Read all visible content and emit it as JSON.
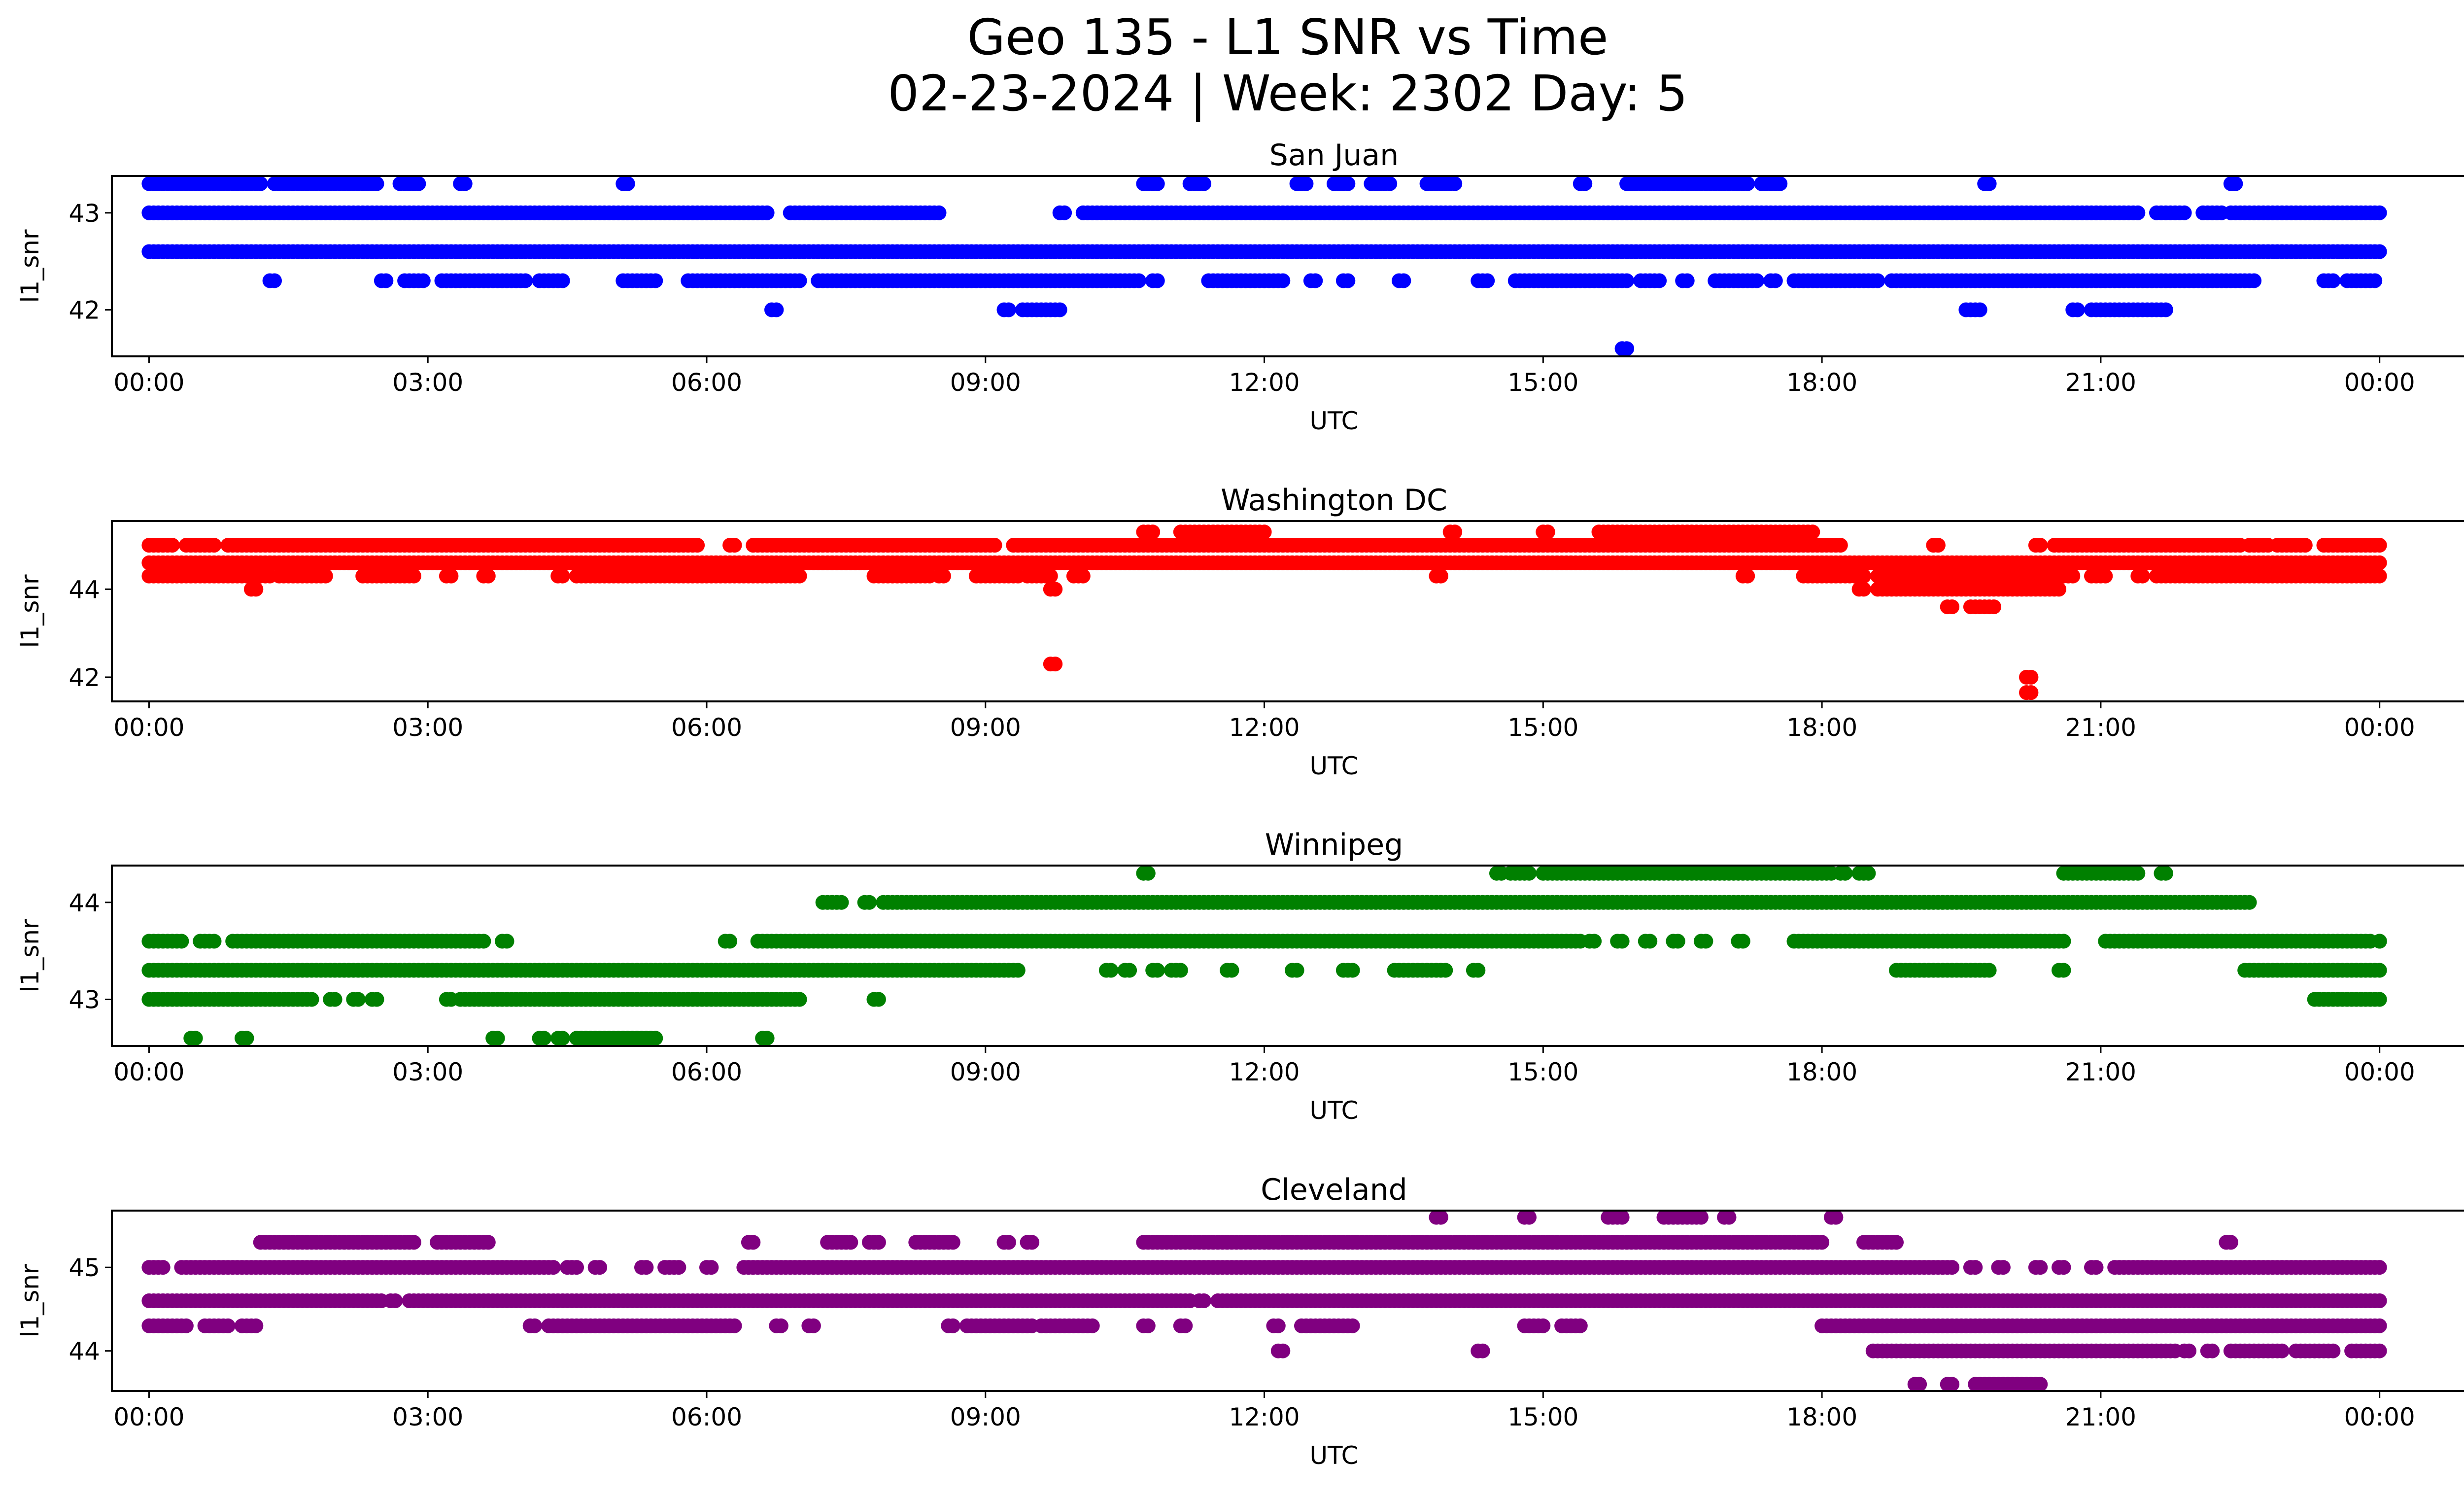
{
  "figure": {
    "title_line1": "Geo 135 - L1 SNR vs Time",
    "title_line2": "02-23-2024 | Week: 2302 Day: 5"
  },
  "chart_data": [
    {
      "type": "scatter",
      "title": "San Juan",
      "xlabel": "UTC",
      "ylabel": "l1_snr",
      "color": "#0000ff",
      "xticks": [
        "00:00",
        "03:00",
        "06:00",
        "09:00",
        "12:00",
        "15:00",
        "18:00",
        "21:00",
        "00:00"
      ],
      "yticks": [
        42,
        43
      ],
      "xlim_hours": [
        -0.4,
        25.9
      ],
      "ylim": [
        41.52,
        43.38
      ],
      "series": [
        {
          "y": 43.3,
          "segments": [
            [
              0.0,
              1.2
            ],
            [
              1.35,
              2.45
            ],
            [
              2.7,
              2.9
            ],
            [
              3.35,
              3.4
            ],
            [
              5.1,
              5.15
            ],
            [
              10.7,
              10.85
            ],
            [
              11.2,
              11.35
            ],
            [
              12.35,
              12.45
            ],
            [
              12.75,
              12.9
            ],
            [
              13.15,
              13.35
            ],
            [
              13.75,
              14.05
            ],
            [
              15.4,
              15.45
            ],
            [
              15.9,
              17.2
            ],
            [
              17.35,
              17.55
            ],
            [
              19.75,
              19.8
            ],
            [
              22.4,
              22.45
            ]
          ]
        },
        {
          "y": 43.0,
          "segments": [
            [
              0.0,
              6.65
            ],
            [
              6.9,
              8.5
            ],
            [
              9.8,
              9.85
            ],
            [
              10.05,
              21.4
            ],
            [
              21.6,
              21.9
            ],
            [
              22.1,
              22.3
            ],
            [
              22.4,
              24.0
            ]
          ]
        },
        {
          "y": 42.6,
          "segments": [
            [
              0.0,
              24.0
            ]
          ]
        },
        {
          "y": 42.3,
          "segments": [
            [
              1.3,
              1.35
            ],
            [
              2.5,
              2.55
            ],
            [
              2.75,
              2.95
            ],
            [
              3.15,
              4.05
            ],
            [
              4.2,
              4.45
            ],
            [
              5.1,
              5.45
            ],
            [
              5.8,
              7.0
            ],
            [
              7.2,
              10.65
            ],
            [
              10.8,
              10.85
            ],
            [
              11.4,
              12.2
            ],
            [
              12.5,
              12.55
            ],
            [
              12.85,
              12.9
            ],
            [
              13.45,
              13.5
            ],
            [
              14.3,
              14.4
            ],
            [
              14.7,
              15.9
            ],
            [
              16.05,
              16.25
            ],
            [
              16.5,
              16.55
            ],
            [
              16.85,
              17.3
            ],
            [
              17.45,
              17.5
            ],
            [
              17.7,
              18.6
            ],
            [
              18.75,
              22.4
            ],
            [
              22.45,
              22.65
            ],
            [
              23.4,
              23.5
            ],
            [
              23.65,
              23.95
            ]
          ]
        },
        {
          "y": 42.0,
          "segments": [
            [
              6.7,
              6.75
            ],
            [
              9.2,
              9.25
            ],
            [
              9.4,
              9.8
            ],
            [
              19.55,
              19.7
            ],
            [
              20.7,
              20.75
            ],
            [
              20.9,
              21.7
            ]
          ]
        },
        {
          "y": 41.6,
          "segments": [
            [
              15.85,
              15.9
            ]
          ]
        }
      ]
    },
    {
      "type": "scatter",
      "title": "Washington DC",
      "xlabel": "UTC",
      "ylabel": "l1_snr",
      "color": "#ff0000",
      "xticks": [
        "00:00",
        "03:00",
        "06:00",
        "09:00",
        "12:00",
        "15:00",
        "18:00",
        "21:00",
        "00:00"
      ],
      "yticks": [
        42,
        44
      ],
      "xlim_hours": [
        -0.4,
        25.9
      ],
      "ylim": [
        41.45,
        45.55
      ],
      "series": [
        {
          "y": 45.3,
          "segments": [
            [
              10.7,
              10.8
            ],
            [
              11.1,
              12.0
            ],
            [
              14.0,
              14.05
            ],
            [
              15.0,
              15.05
            ],
            [
              15.6,
              17.9
            ]
          ]
        },
        {
          "y": 45.0,
          "segments": [
            [
              0.0,
              0.25
            ],
            [
              0.4,
              0.7
            ],
            [
              0.85,
              5.9
            ],
            [
              6.25,
              6.3
            ],
            [
              6.5,
              9.1
            ],
            [
              9.3,
              9.35
            ],
            [
              9.4,
              18.2
            ],
            [
              19.2,
              19.25
            ],
            [
              20.3,
              20.35
            ],
            [
              20.5,
              22.5
            ],
            [
              22.6,
              22.8
            ],
            [
              22.9,
              23.2
            ],
            [
              23.4,
              24.0
            ]
          ]
        },
        {
          "y": 44.6,
          "segments": [
            [
              0.0,
              24.0
            ]
          ]
        },
        {
          "y": 44.3,
          "segments": [
            [
              0.0,
              1.3
            ],
            [
              1.4,
              1.8
            ],
            [
              1.85,
              1.9
            ],
            [
              2.3,
              2.85
            ],
            [
              3.2,
              3.25
            ],
            [
              3.6,
              3.65
            ],
            [
              4.4,
              4.45
            ],
            [
              4.6,
              7.0
            ],
            [
              7.8,
              8.25
            ],
            [
              8.3,
              8.4
            ],
            [
              8.5,
              8.55
            ],
            [
              8.9,
              9.35
            ],
            [
              9.45,
              9.7
            ],
            [
              9.95,
              10.05
            ],
            [
              13.85,
              13.9
            ],
            [
              17.15,
              17.2
            ],
            [
              17.8,
              18.45
            ],
            [
              18.6,
              20.7
            ],
            [
              20.9,
              21.05
            ],
            [
              21.4,
              21.45
            ],
            [
              21.6,
              22.45
            ],
            [
              22.5,
              24.0
            ]
          ]
        },
        {
          "y": 44.0,
          "segments": [
            [
              1.1,
              1.15
            ],
            [
              9.7,
              9.75
            ],
            [
              18.4,
              18.45
            ],
            [
              18.6,
              20.55
            ]
          ]
        },
        {
          "y": 43.6,
          "segments": [
            [
              19.35,
              19.4
            ],
            [
              19.6,
              19.85
            ]
          ]
        },
        {
          "y": 42.3,
          "segments": [
            [
              9.7,
              9.75
            ]
          ]
        },
        {
          "y": 42.0,
          "segments": [
            [
              20.2,
              20.25
            ]
          ]
        },
        {
          "y": 41.65,
          "segments": [
            [
              20.2,
              20.25
            ]
          ]
        }
      ]
    },
    {
      "type": "scatter",
      "title": "Winnipeg",
      "xlabel": "UTC",
      "ylabel": "l1_snr",
      "color": "#008000",
      "xticks": [
        "00:00",
        "03:00",
        "06:00",
        "09:00",
        "12:00",
        "15:00",
        "18:00",
        "21:00",
        "00:00"
      ],
      "yticks": [
        43,
        44
      ],
      "xlim_hours": [
        -0.4,
        25.9
      ],
      "ylim": [
        42.52,
        44.38
      ],
      "series": [
        {
          "y": 44.3,
          "segments": [
            [
              10.7,
              10.75
            ],
            [
              14.5,
              14.55
            ],
            [
              14.65,
              14.85
            ],
            [
              15.0,
              18.1
            ],
            [
              18.2,
              18.25
            ],
            [
              18.4,
              18.5
            ],
            [
              20.6,
              21.4
            ],
            [
              21.65,
              21.7
            ]
          ]
        },
        {
          "y": 44.0,
          "segments": [
            [
              7.25,
              7.45
            ],
            [
              7.7,
              7.75
            ],
            [
              7.9,
              22.6
            ]
          ]
        },
        {
          "y": 43.6,
          "segments": [
            [
              0.0,
              0.35
            ],
            [
              0.55,
              0.7
            ],
            [
              0.9,
              3.6
            ],
            [
              3.8,
              3.85
            ],
            [
              6.2,
              6.25
            ],
            [
              6.55,
              15.4
            ],
            [
              15.5,
              15.55
            ],
            [
              15.8,
              15.85
            ],
            [
              16.1,
              16.15
            ],
            [
              16.4,
              16.45
            ],
            [
              16.7,
              16.75
            ],
            [
              17.1,
              17.15
            ],
            [
              17.7,
              20.6
            ],
            [
              21.05,
              23.9
            ],
            [
              24.0,
              24.0
            ]
          ]
        },
        {
          "y": 43.3,
          "segments": [
            [
              0.0,
              9.35
            ],
            [
              10.3,
              10.35
            ],
            [
              10.5,
              10.55
            ],
            [
              10.8,
              10.85
            ],
            [
              11.0,
              11.1
            ],
            [
              11.6,
              11.65
            ],
            [
              12.3,
              12.35
            ],
            [
              12.85,
              12.95
            ],
            [
              13.4,
              13.95
            ],
            [
              14.25,
              14.3
            ],
            [
              18.8,
              19.8
            ],
            [
              20.55,
              20.6
            ],
            [
              22.55,
              24.0
            ]
          ]
        },
        {
          "y": 43.0,
          "segments": [
            [
              0.0,
              1.75
            ],
            [
              1.95,
              2.0
            ],
            [
              2.2,
              2.25
            ],
            [
              2.4,
              2.45
            ],
            [
              3.2,
              3.25
            ],
            [
              3.35,
              7.0
            ],
            [
              7.8,
              7.85
            ],
            [
              23.3,
              24.0
            ]
          ]
        },
        {
          "y": 42.6,
          "segments": [
            [
              0.45,
              0.5
            ],
            [
              1.0,
              1.05
            ],
            [
              3.7,
              3.75
            ],
            [
              4.2,
              4.25
            ],
            [
              4.4,
              4.45
            ],
            [
              4.6,
              5.45
            ],
            [
              6.6,
              6.65
            ]
          ]
        }
      ]
    },
    {
      "type": "scatter",
      "title": "Cleveland",
      "xlabel": "UTC",
      "ylabel": "l1_snr",
      "color": "#800080",
      "xticks": [
        "00:00",
        "03:00",
        "06:00",
        "09:00",
        "12:00",
        "15:00",
        "18:00",
        "21:00",
        "00:00"
      ],
      "yticks": [
        44,
        45
      ],
      "xlim_hours": [
        -0.4,
        25.9
      ],
      "ylim": [
        43.52,
        45.68
      ],
      "series": [
        {
          "y": 45.6,
          "segments": [
            [
              13.85,
              13.9
            ],
            [
              14.8,
              14.85
            ],
            [
              15.7,
              15.85
            ],
            [
              16.3,
              16.7
            ],
            [
              16.95,
              17.0
            ],
            [
              18.1,
              18.15
            ]
          ]
        },
        {
          "y": 45.3,
          "segments": [
            [
              1.2,
              2.85
            ],
            [
              3.1,
              3.55
            ],
            [
              3.6,
              3.65
            ],
            [
              6.45,
              6.5
            ],
            [
              7.3,
              7.55
            ],
            [
              7.75,
              7.85
            ],
            [
              8.25,
              8.65
            ],
            [
              9.2,
              9.25
            ],
            [
              9.45,
              9.5
            ],
            [
              10.7,
              18.0
            ],
            [
              18.45,
              18.8
            ],
            [
              22.35,
              22.4
            ]
          ]
        },
        {
          "y": 45.0,
          "segments": [
            [
              0.0,
              0.15
            ],
            [
              0.35,
              4.35
            ],
            [
              4.5,
              4.6
            ],
            [
              4.8,
              4.85
            ],
            [
              5.3,
              5.35
            ],
            [
              5.55,
              5.7
            ],
            [
              6.0,
              6.05
            ],
            [
              6.4,
              19.4
            ],
            [
              19.6,
              19.65
            ],
            [
              19.9,
              19.95
            ],
            [
              20.3,
              20.35
            ],
            [
              20.55,
              20.6
            ],
            [
              20.9,
              20.95
            ],
            [
              21.15,
              24.0
            ]
          ]
        },
        {
          "y": 44.6,
          "segments": [
            [
              0.0,
              2.5
            ],
            [
              2.6,
              2.65
            ],
            [
              2.8,
              11.2
            ],
            [
              11.3,
              11.35
            ],
            [
              11.5,
              24.0
            ]
          ]
        },
        {
          "y": 44.3,
          "segments": [
            [
              0.0,
              0.4
            ],
            [
              0.6,
              0.85
            ],
            [
              1.0,
              1.05
            ],
            [
              1.1,
              1.15
            ],
            [
              4.1,
              4.15
            ],
            [
              4.3,
              6.3
            ],
            [
              6.75,
              6.8
            ],
            [
              7.1,
              7.15
            ],
            [
              8.6,
              8.65
            ],
            [
              8.8,
              9.5
            ],
            [
              9.6,
              10.15
            ],
            [
              10.7,
              10.75
            ],
            [
              11.1,
              11.15
            ],
            [
              12.1,
              12.15
            ],
            [
              12.4,
              12.95
            ],
            [
              14.8,
              15.0
            ],
            [
              15.2,
              15.4
            ],
            [
              18.0,
              18.15
            ],
            [
              18.2,
              24.0
            ]
          ]
        },
        {
          "y": 44.0,
          "segments": [
            [
              12.15,
              12.2
            ],
            [
              14.3,
              14.35
            ],
            [
              18.55,
              21.8
            ],
            [
              21.9,
              21.95
            ],
            [
              22.15,
              22.2
            ],
            [
              22.4,
              22.95
            ],
            [
              23.1,
              23.5
            ],
            [
              23.7,
              24.0
            ]
          ]
        },
        {
          "y": 43.6,
          "segments": [
            [
              19.0,
              19.05
            ],
            [
              19.35,
              19.4
            ],
            [
              19.65,
              19.85
            ],
            [
              19.9,
              20.35
            ]
          ]
        }
      ]
    }
  ]
}
